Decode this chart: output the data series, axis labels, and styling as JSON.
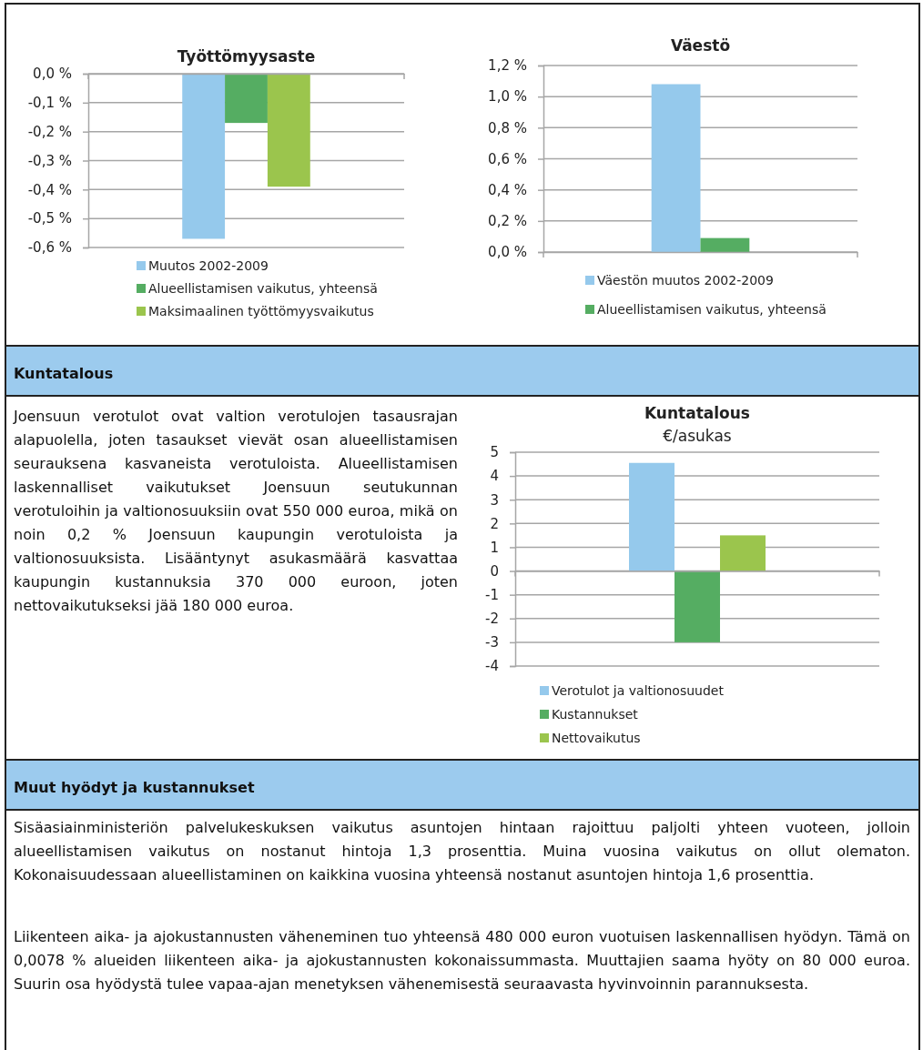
{
  "chart_data": [
    {
      "type": "bar",
      "title": "Työttömyysaste",
      "categories": [
        null
      ],
      "series": [
        {
          "name": "Muutos 2002-2009",
          "color": "#95c9ec",
          "values": [
            -0.57
          ]
        },
        {
          "name": "Alueellistamisen vaikutus, yhteensä",
          "color": "#55ad62",
          "values": [
            -0.17
          ]
        },
        {
          "name": "Maksimaalinen työttömyysvaikutus",
          "color": "#9bc54d",
          "values": [
            -0.39
          ]
        }
      ],
      "ylim": [
        -0.6,
        0
      ],
      "yticks": [
        {
          "value": 0,
          "label": "0,0 %"
        },
        {
          "value": -0.1,
          "label": "-0,1 %"
        },
        {
          "value": -0.2,
          "label": "-0,2 %"
        },
        {
          "value": -0.3,
          "label": "-0,3 %"
        },
        {
          "value": -0.4,
          "label": "-0,4 %"
        },
        {
          "value": -0.5,
          "label": "-0,5 %"
        },
        {
          "value": -0.6,
          "label": "-0,6 %"
        }
      ],
      "grid": "y",
      "legend": "bottom"
    },
    {
      "type": "bar",
      "title": "Väestö",
      "categories": [
        null
      ],
      "series": [
        {
          "name": "Väestön muutos 2002-2009",
          "color": "#95c9ec",
          "values": [
            1.08
          ]
        },
        {
          "name": "Alueellistamisen vaikutus, yhteensä",
          "color": "#55ad62",
          "values": [
            0.09
          ]
        }
      ],
      "ylim": [
        0,
        1.2
      ],
      "yticks": [
        {
          "value": 0,
          "label": "0,0 %"
        },
        {
          "value": 0.2,
          "label": "0,2 %"
        },
        {
          "value": 0.4,
          "label": "0,4 %"
        },
        {
          "value": 0.6,
          "label": "0,6 %"
        },
        {
          "value": 0.8,
          "label": "0,8 %"
        },
        {
          "value": 1.0,
          "label": "1,0 %"
        },
        {
          "value": 1.2,
          "label": "1,2 %"
        }
      ],
      "grid": "y",
      "legend": "bottom"
    },
    {
      "type": "bar",
      "title": "Kuntatalous",
      "subtitle": "€/asukas",
      "categories": [
        null
      ],
      "series": [
        {
          "name": "Verotulot ja valtionosuudet",
          "color": "#95c9ec",
          "values": [
            4.55
          ]
        },
        {
          "name": "Kustannukset",
          "color": "#55ad62",
          "values": [
            -3.0
          ]
        },
        {
          "name": "Nettovaikutus",
          "color": "#9bc54d",
          "values": [
            1.5
          ]
        }
      ],
      "ylim": [
        -4,
        5
      ],
      "yticks": [
        5,
        4,
        3,
        2,
        1,
        0,
        -1,
        -2,
        -3,
        -4
      ],
      "grid": "y",
      "legend": "bottom",
      "annotations": [
        "Kuntatalous",
        "Joensuun verotulot ovat valtion verotulojen tasausrajan alapuolella, joten tasaukset vievät osan alueellistamisen seurauksena kasvaneista verotuloista. Alueellistamisen laskennalliset vaikutukset Joensuun seutukunnan verotuloihin ja valtionosuuksiin ovat 550 000 euroa, mikä on noin 0,2 % Joensuun kaupungin verotuloista ja valtionosuuksista. Lisääntynyt asukasmäärä kasvattaa kaupungin kustannuksia 370 000 euroon, joten nettovaikutukseksi jää 180 000 euroa.",
        "Muut hyödyt ja kustannukset",
        "Sisäasiainministeriön palvelukeskuksen vaikutus asuntojen hintaan rajoittuu paljolti yhteen vuoteen, jolloin alueellistamisen vaikutus on nostanut hintoja 1,3 prosenttia. Muina vuosina vaikutus on ollut olematon. Kokonaisuudessaan alueellistaminen on kaikkina vuosina yhteensä nostanut asuntojen hintoja 1,6 prosenttia.",
        "Liikenteen aika- ja ajokustannusten väheneminen tuo yhteensä 480 000 euron vuotuisen laskennallisen hyödyn. Tämä on 0,0078 % alueiden liikenteen aika- ja ajokustannusten kokonaissummasta. Muuttajien saama hyöty on 80 000 euroa. Suurin osa hyödystä tulee vapaa-ajan menetyksen vähenemisestä seuraavasta hyvinvoinnin parannuksesta."
      ]
    }
  ]
}
